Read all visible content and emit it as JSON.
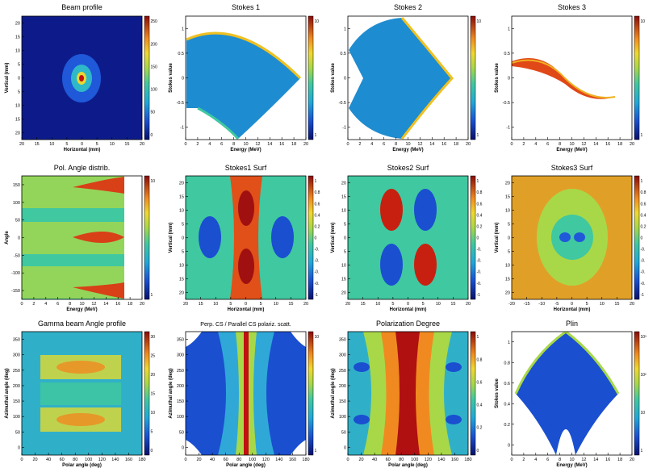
{
  "chart_data": [
    {
      "id": "p1",
      "type": "heatmap",
      "title": "Beam profile",
      "xlabel": "Horizontal (mm)",
      "ylabel": "Vertical (mm)",
      "xlim": [
        -20,
        20
      ],
      "ylim": [
        -20,
        20
      ],
      "xticks": [
        "20",
        "15",
        "10",
        "5",
        "0",
        "5",
        "10",
        "15",
        "20"
      ],
      "yticks": [
        "20",
        "15",
        "10",
        "5",
        "0",
        "5",
        "10",
        "15",
        "20"
      ],
      "zticks": [
        "0",
        "50",
        "100",
        "150",
        "200",
        "250"
      ],
      "zscale": "linear"
    },
    {
      "id": "p2",
      "type": "heatmap",
      "title": "Stokes 1",
      "xlabel": "Energy (MeV)",
      "ylabel": "Stokes value",
      "xlim": [
        0,
        20
      ],
      "ylim": [
        -1,
        1
      ],
      "xticks": [
        "0",
        "2",
        "4",
        "6",
        "8",
        "10",
        "12",
        "14",
        "16",
        "18",
        "20"
      ],
      "yticks": [
        "-1",
        "-0.5",
        "0",
        "0.5",
        "1"
      ],
      "zticks": [
        "1",
        "10"
      ],
      "zscale": "log"
    },
    {
      "id": "p3",
      "type": "heatmap",
      "title": "Stokes 2",
      "xlabel": "Energy (MeV)",
      "ylabel": "Stokes value",
      "xlim": [
        0,
        20
      ],
      "ylim": [
        -1,
        1
      ],
      "xticks": [
        "0",
        "2",
        "4",
        "6",
        "8",
        "10",
        "12",
        "14",
        "16",
        "18",
        "20"
      ],
      "yticks": [
        "-1",
        "-0.5",
        "0",
        "0.5",
        "1"
      ],
      "zticks": [
        "1",
        "10"
      ],
      "zscale": "log"
    },
    {
      "id": "p4",
      "type": "heatmap",
      "title": "Stokes 3",
      "xlabel": "Energy (MeV)",
      "ylabel": "Stokes value",
      "xlim": [
        0,
        20
      ],
      "ylim": [
        -1,
        1
      ],
      "xticks": [
        "0",
        "2",
        "4",
        "6",
        "8",
        "10",
        "12",
        "14",
        "16",
        "18",
        "20"
      ],
      "yticks": [
        "-1",
        "-0.5",
        "0",
        "0.5",
        "1"
      ],
      "zticks": [
        "1",
        "10"
      ],
      "zscale": "log"
    },
    {
      "id": "p5",
      "type": "heatmap",
      "title": "Pol. Angle distrib.",
      "xlabel": "Energy (MeV)",
      "ylabel": "Angle",
      "xlim": [
        0,
        20
      ],
      "ylim": [
        -180,
        180
      ],
      "xticks": [
        "0",
        "2",
        "4",
        "6",
        "8",
        "10",
        "12",
        "14",
        "16",
        "18",
        "20"
      ],
      "yticks": [
        "-150",
        "-100",
        "-50",
        "0",
        "50",
        "100",
        "150"
      ],
      "zticks": [
        "1",
        "10"
      ],
      "zscale": "log"
    },
    {
      "id": "p6",
      "type": "heatmap",
      "title": "Stokes1 Surf",
      "xlabel": "Horizontal (mm)",
      "ylabel": "Vertical (mm)",
      "xlim": [
        -20,
        20
      ],
      "ylim": [
        -20,
        20
      ],
      "xticks": [
        "20",
        "15",
        "10",
        "5",
        "0",
        "5",
        "10",
        "15",
        "20"
      ],
      "yticks": [
        "20",
        "15",
        "10",
        "5",
        "0",
        "5",
        "10",
        "15",
        "20"
      ],
      "zticks": [
        "-1",
        "-0.",
        "-0.",
        "-0.",
        "-0.",
        "0",
        "0.2",
        "0.4",
        "0.6",
        "0.8",
        "1"
      ],
      "zscale": "linear"
    },
    {
      "id": "p7",
      "type": "heatmap",
      "title": "Stokes2 Surf",
      "xlabel": "Horizontal (mm)",
      "ylabel": "Vertical (mm)",
      "xlim": [
        -20,
        20
      ],
      "ylim": [
        -20,
        20
      ],
      "xticks": [
        "20",
        "15",
        "10",
        "5",
        "0",
        "5",
        "10",
        "15",
        "20"
      ],
      "yticks": [
        "20",
        "15",
        "10",
        "5",
        "0",
        "5",
        "10",
        "15",
        "20"
      ],
      "zticks": [
        "-1",
        "-0.",
        "-0.",
        "-0.",
        "-0.",
        "0",
        "0.2",
        "0.4",
        "0.6",
        "0.8",
        "1"
      ],
      "zscale": "linear"
    },
    {
      "id": "p8",
      "type": "heatmap",
      "title": "Stokes3 Surf",
      "xlabel": "Horizontal (mm)",
      "ylabel": "Vertical (mm)",
      "xlim": [
        -20,
        20
      ],
      "ylim": [
        -20,
        20
      ],
      "xticks": [
        "-20",
        "-15",
        "-10",
        "-5",
        "0",
        "5",
        "10",
        "15",
        "20"
      ],
      "yticks": [
        "20",
        "15",
        "10",
        "5",
        "0",
        "5",
        "10",
        "15",
        "20"
      ],
      "zticks": [
        "-1",
        "-0.",
        "-0.",
        "-0.",
        "-0.",
        "0",
        "0.2",
        "0.4",
        "0.6",
        "0.8",
        "1"
      ],
      "zscale": "linear"
    },
    {
      "id": "p9",
      "type": "heatmap",
      "title": "Gamma beam Angle profile",
      "xlabel": "Polar angle (deg)",
      "ylabel": "Azimuthal angle (deg)",
      "xlim": [
        0,
        180
      ],
      "ylim": [
        0,
        360
      ],
      "xticks": [
        "0",
        "20",
        "40",
        "60",
        "80",
        "100",
        "120",
        "140",
        "160",
        "180"
      ],
      "yticks": [
        "0",
        "50",
        "100",
        "150",
        "200",
        "250",
        "300",
        "350"
      ],
      "zticks": [
        "0",
        "5",
        "10",
        "15",
        "20",
        "25",
        "30"
      ],
      "zscale": "linear"
    },
    {
      "id": "p10",
      "type": "heatmap",
      "title": "Perp. CS / Parallel CS polariz. scatt.",
      "xlabel": "Polar angle (deg)",
      "ylabel": "Azimuthal angle (deg)",
      "xlim": [
        0,
        180
      ],
      "ylim": [
        0,
        360
      ],
      "xticks": [
        "0",
        "20",
        "40",
        "60",
        "80",
        "100",
        "120",
        "140",
        "160",
        "180"
      ],
      "yticks": [
        "0",
        "50",
        "100",
        "150",
        "200",
        "250",
        "300",
        "350"
      ],
      "zticks": [
        "1",
        "10"
      ],
      "zscale": "log"
    },
    {
      "id": "p11",
      "type": "heatmap",
      "title": "Polarization Degree",
      "xlabel": "Polar angle (deg)",
      "ylabel": "Azimuthal angle (deg)",
      "xlim": [
        0,
        180
      ],
      "ylim": [
        0,
        360
      ],
      "xticks": [
        "0",
        "20",
        "40",
        "60",
        "80",
        "100",
        "120",
        "140",
        "160",
        "180"
      ],
      "yticks": [
        "0",
        "50",
        "100",
        "150",
        "200",
        "250",
        "300",
        "350"
      ],
      "zticks": [
        "0",
        "0.2",
        "0.4",
        "0.6",
        "0.8",
        "1"
      ],
      "zscale": "linear"
    },
    {
      "id": "p12",
      "type": "heatmap",
      "title": "Plin",
      "xlabel": "Energy (MeV)",
      "ylabel": "Stokes value",
      "xlim": [
        0,
        20
      ],
      "ylim": [
        0,
        1
      ],
      "xticks": [
        "0",
        "2",
        "4",
        "6",
        "8",
        "10",
        "12",
        "14",
        "16",
        "18",
        "20"
      ],
      "yticks": [
        "0",
        "0.2",
        "0.4",
        "0.6",
        "0.8",
        "1"
      ],
      "zticks": [
        "1",
        "10",
        "10²",
        "10³"
      ],
      "zscale": "log"
    }
  ]
}
